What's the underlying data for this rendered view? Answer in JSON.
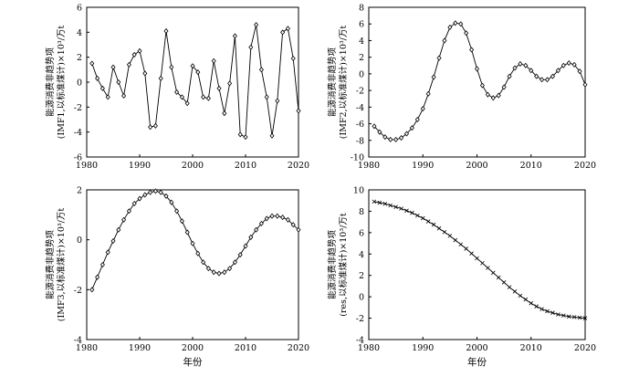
{
  "chart_data": [
    {
      "type": "line",
      "panel": "IMF1",
      "title": "",
      "xlabel": "",
      "ylabel_lines": [
        "能源消费非趋势项",
        "(IMF1,以标准煤计)×10³/万t"
      ],
      "xlim": [
        1980,
        2020
      ],
      "ylim": [
        -6,
        6
      ],
      "xticks": [
        1980,
        1990,
        2000,
        2010,
        2020
      ],
      "yticks": [
        -6,
        -4,
        -2,
        0,
        2,
        4,
        6
      ],
      "grid": false,
      "marker": "diamond",
      "x": [
        1981,
        1982,
        1983,
        1984,
        1985,
        1986,
        1987,
        1988,
        1989,
        1990,
        1991,
        1992,
        1993,
        1994,
        1995,
        1996,
        1997,
        1998,
        1999,
        2000,
        2001,
        2002,
        2003,
        2004,
        2005,
        2006,
        2007,
        2008,
        2009,
        2010,
        2011,
        2012,
        2013,
        2014,
        2015,
        2016,
        2017,
        2018,
        2019,
        2020
      ],
      "y": [
        1.5,
        0.3,
        -0.5,
        -1.2,
        1.2,
        0.0,
        -1.1,
        1.4,
        2.2,
        2.5,
        0.7,
        -3.6,
        -3.5,
        0.3,
        4.1,
        1.2,
        -0.8,
        -1.2,
        -1.7,
        1.3,
        0.8,
        -1.2,
        -1.3,
        1.7,
        -0.5,
        -2.5,
        -0.1,
        3.7,
        -4.2,
        -4.4,
        2.8,
        4.6,
        1.0,
        -1.2,
        -4.3,
        -1.5,
        4.0,
        4.3,
        1.9,
        -2.3
      ]
    },
    {
      "type": "line",
      "panel": "IMF2",
      "title": "",
      "xlabel": "",
      "ylabel_lines": [
        "能源消费非趋势项",
        "(IMF2,以标准煤计)×10³/万t"
      ],
      "xlim": [
        1980,
        2020
      ],
      "ylim": [
        -10,
        8
      ],
      "xticks": [
        1980,
        1990,
        2000,
        2010,
        2020
      ],
      "yticks": [
        -10,
        -8,
        -6,
        -4,
        -2,
        0,
        2,
        4,
        6,
        8
      ],
      "grid": false,
      "marker": "diamond",
      "x": [
        1981,
        1982,
        1983,
        1984,
        1985,
        1986,
        1987,
        1988,
        1989,
        1990,
        1991,
        1992,
        1993,
        1994,
        1995,
        1996,
        1997,
        1998,
        1999,
        2000,
        2001,
        2002,
        2003,
        2004,
        2005,
        2006,
        2007,
        2008,
        2009,
        2010,
        2011,
        2012,
        2013,
        2014,
        2015,
        2016,
        2017,
        2018,
        2019,
        2020
      ],
      "y": [
        -6.3,
        -7.0,
        -7.6,
        -7.9,
        -7.9,
        -7.7,
        -7.2,
        -6.5,
        -5.5,
        -4.2,
        -2.4,
        -0.4,
        1.9,
        4.0,
        5.6,
        6.1,
        6.0,
        4.9,
        2.9,
        0.6,
        -1.4,
        -2.5,
        -2.9,
        -2.6,
        -1.6,
        -0.3,
        0.7,
        1.2,
        1.0,
        0.4,
        -0.3,
        -0.7,
        -0.7,
        -0.3,
        0.4,
        1.0,
        1.3,
        1.1,
        0.3,
        -1.3
      ]
    },
    {
      "type": "line",
      "panel": "IMF3",
      "title": "",
      "xlabel": "年份",
      "ylabel_lines": [
        "能源消费非趋势项",
        "(IMF3,以标准煤计)×10³/万t"
      ],
      "xlim": [
        1980,
        2020
      ],
      "ylim": [
        -4,
        2
      ],
      "xticks": [
        1980,
        1990,
        2000,
        2010,
        2020
      ],
      "yticks": [
        -4,
        -2,
        0,
        2
      ],
      "grid": false,
      "marker": "diamond",
      "x": [
        1981,
        1982,
        1983,
        1984,
        1985,
        1986,
        1987,
        1988,
        1989,
        1990,
        1991,
        1992,
        1993,
        1994,
        1995,
        1996,
        1997,
        1998,
        1999,
        2000,
        2001,
        2002,
        2003,
        2004,
        2005,
        2006,
        2007,
        2008,
        2009,
        2010,
        2011,
        2012,
        2013,
        2014,
        2015,
        2016,
        2017,
        2018,
        2019,
        2020
      ],
      "y": [
        -2.0,
        -1.5,
        -1.0,
        -0.5,
        -0.05,
        0.4,
        0.8,
        1.15,
        1.45,
        1.65,
        1.8,
        1.9,
        1.95,
        1.9,
        1.75,
        1.5,
        1.15,
        0.75,
        0.3,
        -0.15,
        -0.55,
        -0.9,
        -1.15,
        -1.3,
        -1.35,
        -1.3,
        -1.15,
        -0.9,
        -0.6,
        -0.25,
        0.1,
        0.4,
        0.65,
        0.85,
        0.95,
        0.95,
        0.9,
        0.8,
        0.6,
        0.4
      ]
    },
    {
      "type": "line",
      "panel": "res",
      "title": "",
      "xlabel": "年份",
      "ylabel_lines": [
        "能源消费非趋势项",
        "(res,以标准煤计)×10³/万t"
      ],
      "xlim": [
        1980,
        2020
      ],
      "ylim": [
        -4,
        10
      ],
      "xticks": [
        1980,
        1990,
        2000,
        2010,
        2020
      ],
      "yticks": [
        -4,
        -2,
        0,
        2,
        4,
        6,
        8,
        10
      ],
      "grid": false,
      "marker": "cross",
      "x": [
        1981,
        1982,
        1983,
        1984,
        1985,
        1986,
        1987,
        1988,
        1989,
        1990,
        1991,
        1992,
        1993,
        1994,
        1995,
        1996,
        1997,
        1998,
        1999,
        2000,
        2001,
        2002,
        2003,
        2004,
        2005,
        2006,
        2007,
        2008,
        2009,
        2010,
        2011,
        2012,
        2013,
        2014,
        2015,
        2016,
        2017,
        2018,
        2019,
        2020
      ],
      "y": [
        8.9,
        8.8,
        8.7,
        8.55,
        8.4,
        8.25,
        8.05,
        7.85,
        7.6,
        7.35,
        7.05,
        6.75,
        6.4,
        6.05,
        5.7,
        5.3,
        4.9,
        4.5,
        4.05,
        3.6,
        3.15,
        2.7,
        2.25,
        1.8,
        1.35,
        0.9,
        0.5,
        0.1,
        -0.25,
        -0.6,
        -0.9,
        -1.15,
        -1.35,
        -1.5,
        -1.65,
        -1.75,
        -1.85,
        -1.9,
        -1.95,
        -2.0
      ]
    }
  ]
}
